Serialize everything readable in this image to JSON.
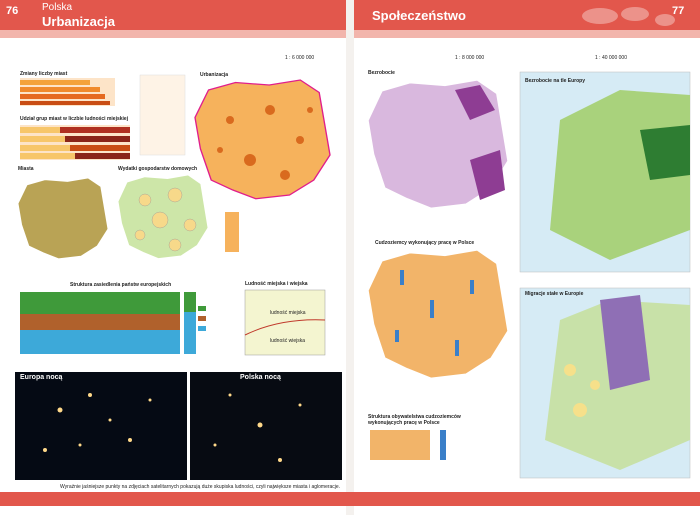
{
  "header": {
    "left_page": "76",
    "country": "Polska",
    "left_title": "Urbanizacja",
    "right_title": "Społeczeństwo",
    "right_page": "77"
  },
  "scales": [
    "1 : 6 000 000",
    "1 : 8 000 000",
    "1 : 40 000 000"
  ],
  "panels": {
    "towns_change": "Zmiany liczby miast",
    "town_groups": "Udział grup miast w liczbie ludności miejskiej",
    "towns": "Miasta",
    "household": "Wydatki gospodarstw domowych",
    "urbanization": "Urbanizacja",
    "settlement": "Struktura zasiedlenia państw europejskich",
    "urban_rural": "Ludność miejska i wiejska",
    "urban_label": "ludność miejska",
    "rural_label": "ludność wiejska",
    "europe_night": "Europa nocą",
    "poland_night": "Polska nocą",
    "unemployment": "Bezrobocie",
    "unemployment_europe": "Bezrobocie na tle Europy",
    "foreigners": "Cudzoziemcy wykonujący pracę w Polsce",
    "migration": "Migracje stałe w Europie",
    "citizenship": "Struktura obywatelstwa cudzoziemców wykonujących pracę w Polsce"
  },
  "caption": "Wyraźnie jaśniejsze punkty na zdjęciach satelitarnych pokazują duże skupiska ludności, czyli największe miasta i aglomeracje."
}
